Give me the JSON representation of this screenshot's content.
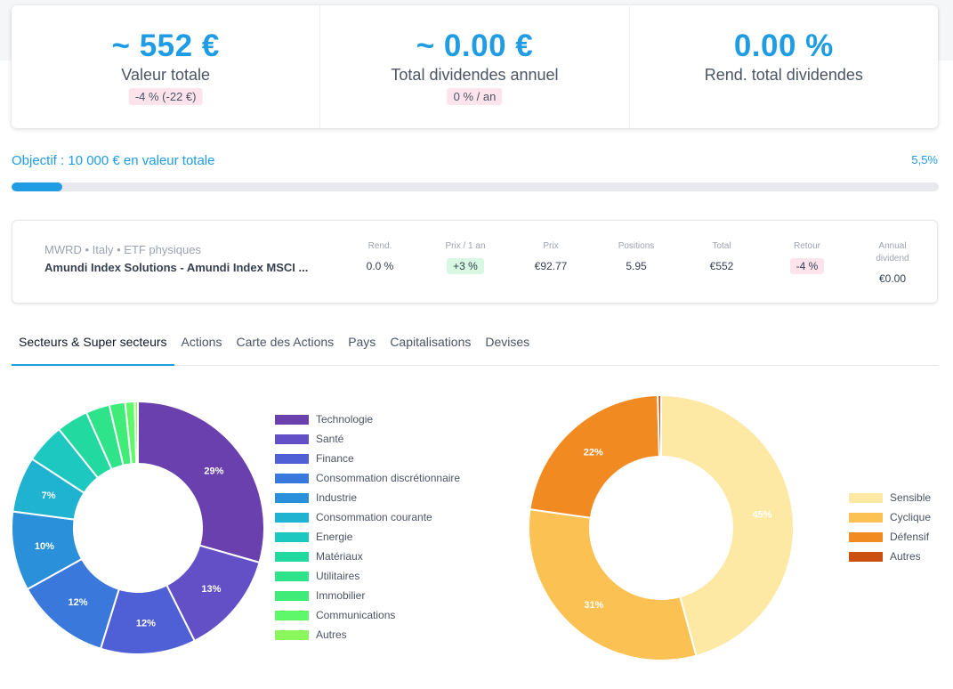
{
  "stats": [
    {
      "value": "~ 552 €",
      "label": "Valeur totale",
      "pill": "-4 % (-22 €)"
    },
    {
      "value": "~ 0.00 €",
      "label": "Total dividendes annuel",
      "pill": "0 % / an"
    },
    {
      "value": "0.00 %",
      "label": "Rend. total dividendes",
      "pill": ""
    }
  ],
  "objective": {
    "label": "Objectif : 10 000 € en valeur totale",
    "percent_text": "5,5%",
    "progress": 0.055
  },
  "holding": {
    "meta": "MWRD • Italy • ETF physiques",
    "name": "Amundi Index Solutions - Amundi Index MSCI ...",
    "columns": [
      {
        "header": "Rend.",
        "value": "0.0 %",
        "style": "plain"
      },
      {
        "header": "Prix / 1 an",
        "value": "+3 %",
        "style": "green"
      },
      {
        "header": "Prix",
        "value": "€92.77",
        "style": "plain"
      },
      {
        "header": "Positions",
        "value": "5.95",
        "style": "plain"
      },
      {
        "header": "Total",
        "value": "€552",
        "style": "plain"
      },
      {
        "header": "Retour",
        "value": "-4 %",
        "style": "pink"
      },
      {
        "header": "Annual dividend",
        "value": "€0.00",
        "style": "plain"
      }
    ]
  },
  "tabs": [
    {
      "label": "Secteurs & Super secteurs",
      "active": true
    },
    {
      "label": "Actions",
      "active": false
    },
    {
      "label": "Carte des Actions",
      "active": false
    },
    {
      "label": "Pays",
      "active": false
    },
    {
      "label": "Capitalisations",
      "active": false
    },
    {
      "label": "Devises",
      "active": false
    }
  ],
  "chart_data": [
    {
      "type": "pie",
      "title": "",
      "categories": [
        "Technologie",
        "Santé",
        "Finance",
        "Consommation discrétionnaire",
        "Industrie",
        "Consommation courante",
        "Energie",
        "Matériaux",
        "Utilitaires",
        "Immobilier",
        "Communications",
        "Autres"
      ],
      "values": [
        29,
        13,
        12,
        12,
        10,
        7,
        5,
        4,
        3,
        2,
        1.2,
        0.4
      ],
      "data_labels": [
        "29%",
        "13%",
        "12%",
        "12%",
        "10%",
        "7%",
        "",
        "",
        "",
        "",
        "",
        ""
      ],
      "colors": [
        "#6a3fae",
        "#6350c7",
        "#4f5fd5",
        "#3a78dc",
        "#2a90d9",
        "#1fb3d1",
        "#1cc8c0",
        "#22d9a0",
        "#2fe38b",
        "#3fec78",
        "#5ef86a",
        "#8af85c"
      ],
      "legend": "right"
    },
    {
      "type": "pie",
      "title": "",
      "categories": [
        "Sensible",
        "Cyclique",
        "Défensif",
        "Autres"
      ],
      "values": [
        45,
        31,
        22,
        0.4
      ],
      "data_labels": [
        "45%",
        "31%",
        "22%",
        ""
      ],
      "colors": [
        "#fde9a4",
        "#fcc153",
        "#f28a22",
        "#cb5010"
      ],
      "legend": "right"
    }
  ]
}
